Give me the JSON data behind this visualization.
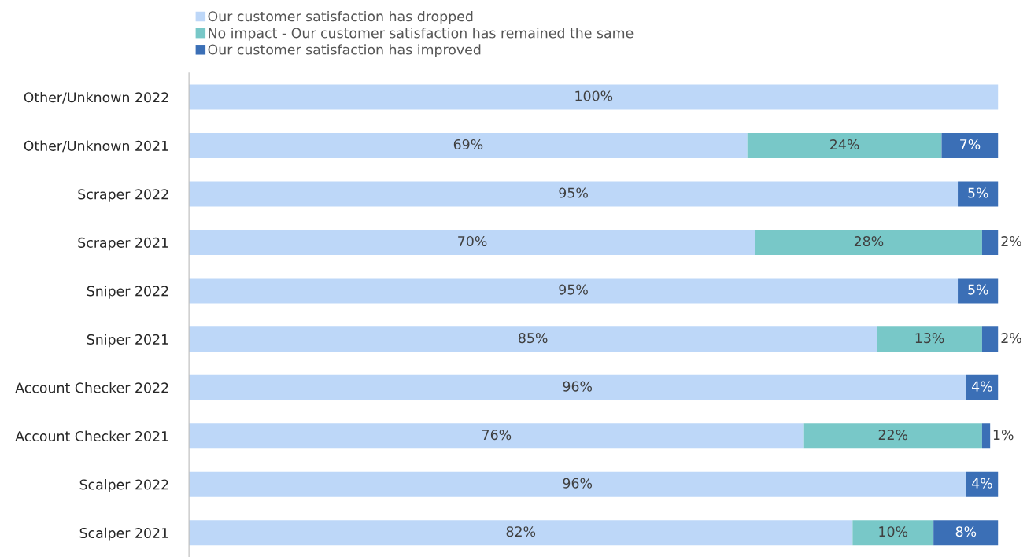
{
  "chart_data": {
    "type": "bar",
    "orientation": "horizontal",
    "stacked": true,
    "legend": "top left",
    "grid": false,
    "categories": [
      "Other/Unknown 2022",
      "Other/Unknown 2021",
      "Scraper 2022",
      "Scraper 2021",
      "Sniper 2022",
      "Sniper 2021",
      "Account Checker 2022",
      "Account Checker 2021",
      "Scalper 2022",
      "Scalper 2021"
    ],
    "series": [
      {
        "name": "Our customer satisfaction has dropped",
        "color": "#bdd7f8",
        "values": [
          100,
          69,
          95,
          70,
          95,
          85,
          96,
          76,
          96,
          82
        ],
        "value_labels": [
          "100%",
          "69%",
          "95%",
          "70%",
          "95%",
          "85%",
          "96%",
          "76%",
          "96%",
          "82%"
        ]
      },
      {
        "name": "No impact - Our customer satisfaction has remained the same",
        "color": "#78c8c8",
        "values": [
          null,
          24,
          null,
          28,
          null,
          13,
          null,
          22,
          null,
          10
        ],
        "value_labels": [
          null,
          "24%",
          null,
          "28%",
          null,
          "13%",
          null,
          "22%",
          null,
          "10%"
        ]
      },
      {
        "name": "Our customer satisfaction has improved",
        "color": "#3b6fb6",
        "values": [
          null,
          7,
          5,
          2,
          5,
          2,
          4,
          1,
          4,
          8
        ],
        "value_labels": [
          null,
          "7%",
          "5%",
          "2%",
          "5%",
          "2%",
          "4%",
          "1%",
          "4%",
          "8%"
        ]
      }
    ]
  }
}
